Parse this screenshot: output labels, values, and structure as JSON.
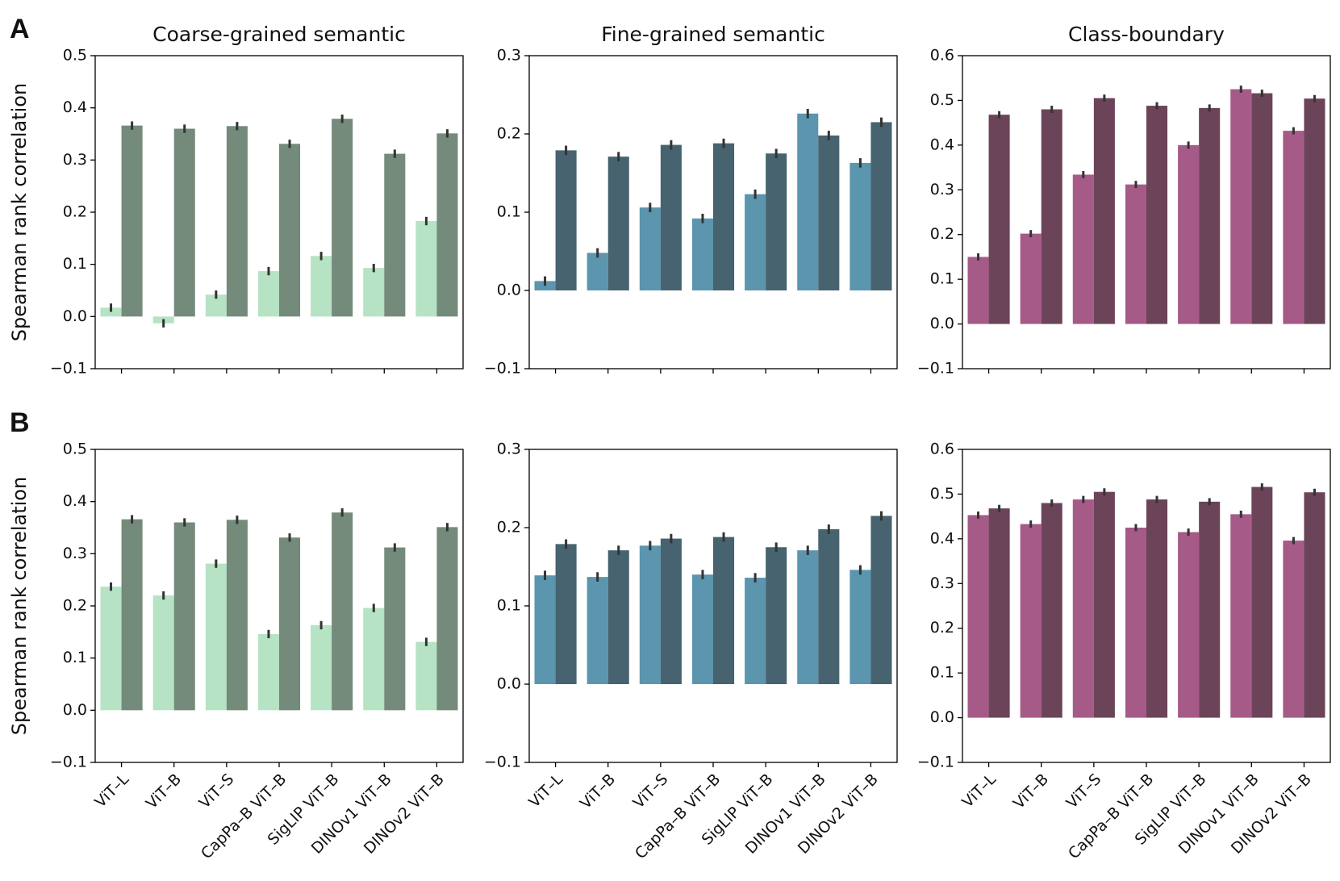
{
  "chart_data": [
    {
      "type": "bar",
      "panel_label": "A",
      "title": "Coarse-grained semantic",
      "ylabel": "Spearman  rank correlation",
      "categories": [
        null,
        null,
        null,
        null,
        null,
        null,
        null
      ],
      "series": [
        {
          "color": "#b6e3c3",
          "values": [
            0.017,
            -0.013,
            0.042,
            0.087,
            0.116,
            0.093,
            0.183
          ],
          "errors": [
            0.008,
            0.008,
            0.008,
            0.008,
            0.008,
            0.008,
            0.008
          ]
        },
        {
          "color": "#748a7b",
          "values": [
            0.366,
            0.36,
            0.365,
            0.331,
            0.379,
            0.312,
            0.351
          ],
          "errors": [
            0.008,
            0.008,
            0.008,
            0.008,
            0.008,
            0.008,
            0.008
          ]
        }
      ],
      "ylim": [
        -0.1,
        0.5
      ],
      "yticks": [
        {
          "value": -0.1,
          "label": "−0.1"
        },
        {
          "value": 0,
          "label": "0.0"
        },
        0.1,
        0.2,
        0.3,
        0.4,
        0.5
      ]
    },
    {
      "type": "bar",
      "title": "Fine-grained semantic",
      "categories": [
        null,
        null,
        null,
        null,
        null,
        null,
        null
      ],
      "series": [
        {
          "color": "#5b95ae",
          "values": [
            0.012,
            0.048,
            0.106,
            0.092,
            0.123,
            0.226,
            0.163
          ],
          "errors": [
            0.006,
            0.006,
            0.006,
            0.006,
            0.006,
            0.006,
            0.006
          ]
        },
        {
          "color": "#46636f",
          "values": [
            0.179,
            0.171,
            0.186,
            0.188,
            0.175,
            0.198,
            0.215
          ],
          "errors": [
            0.006,
            0.006,
            0.006,
            0.006,
            0.006,
            0.006,
            0.006
          ]
        }
      ],
      "ylim": [
        -0.1,
        0.3
      ],
      "yticks": [
        {
          "value": -0.1,
          "label": "−0.1"
        },
        {
          "value": 0,
          "label": "0.0"
        },
        0.1,
        0.2,
        0.3
      ]
    },
    {
      "type": "bar",
      "title": "Class-boundary",
      "categories": [
        null,
        null,
        null,
        null,
        null,
        null,
        null
      ],
      "series": [
        {
          "color": "#a65a87",
          "values": [
            0.15,
            0.202,
            0.334,
            0.312,
            0.4,
            0.525,
            0.432
          ],
          "errors": [
            0.008,
            0.008,
            0.008,
            0.008,
            0.008,
            0.008,
            0.008
          ]
        },
        {
          "color": "#6b4459",
          "values": [
            0.468,
            0.48,
            0.505,
            0.488,
            0.483,
            0.516,
            0.504
          ],
          "errors": [
            0.008,
            0.008,
            0.008,
            0.008,
            0.008,
            0.008,
            0.008
          ]
        }
      ],
      "ylim": [
        -0.1,
        0.6
      ],
      "yticks": [
        {
          "value": -0.1,
          "label": "−0.1"
        },
        {
          "value": 0,
          "label": "0.0"
        },
        0.1,
        0.2,
        0.3,
        0.4,
        0.5,
        0.6
      ]
    },
    {
      "type": "bar",
      "panel_label": "B",
      "ylabel": "Spearman  rank correlation",
      "categories": [
        "ViT–L",
        "ViT–B",
        "ViT–S",
        "CapPa–B  ViT–B",
        "SigLIP  ViT–B",
        "DINOv1  ViT–B",
        "DINOv2  ViT–B"
      ],
      "series": [
        {
          "color": "#b6e3c3",
          "values": [
            0.237,
            0.22,
            0.281,
            0.146,
            0.163,
            0.196,
            0.131
          ],
          "errors": [
            0.008,
            0.008,
            0.008,
            0.008,
            0.008,
            0.008,
            0.008
          ]
        },
        {
          "color": "#748a7b",
          "values": [
            0.366,
            0.36,
            0.365,
            0.331,
            0.379,
            0.312,
            0.351
          ],
          "errors": [
            0.008,
            0.008,
            0.008,
            0.008,
            0.008,
            0.008,
            0.008
          ]
        }
      ],
      "ylim": [
        -0.1,
        0.5
      ],
      "yticks": [
        {
          "value": -0.1,
          "label": "−0.1"
        },
        {
          "value": 0,
          "label": "0.0"
        },
        0.1,
        0.2,
        0.3,
        0.4,
        0.5
      ]
    },
    {
      "type": "bar",
      "categories": [
        "ViT–L",
        "ViT–B",
        "ViT–S",
        "CapPa–B  ViT–B",
        "SigLIP  ViT–B",
        "DINOv1  ViT–B",
        "DINOv2  ViT–B"
      ],
      "series": [
        {
          "color": "#5b95ae",
          "values": [
            0.139,
            0.137,
            0.177,
            0.14,
            0.136,
            0.171,
            0.146
          ],
          "errors": [
            0.006,
            0.006,
            0.006,
            0.006,
            0.006,
            0.006,
            0.006
          ]
        },
        {
          "color": "#46636f",
          "values": [
            0.179,
            0.171,
            0.186,
            0.188,
            0.175,
            0.198,
            0.215
          ],
          "errors": [
            0.006,
            0.006,
            0.006,
            0.006,
            0.006,
            0.006,
            0.006
          ]
        }
      ],
      "ylim": [
        -0.1,
        0.3
      ],
      "yticks": [
        {
          "value": -0.1,
          "label": "−0.1"
        },
        {
          "value": 0,
          "label": "0.0"
        },
        0.1,
        0.2,
        0.3
      ]
    },
    {
      "type": "bar",
      "categories": [
        "ViT–L",
        "ViT–B",
        "ViT–S",
        "CapPa–B  ViT–B",
        "SigLIP  ViT–B",
        "DINOv1  ViT–B",
        "DINOv2  ViT–B"
      ],
      "series": [
        {
          "color": "#a65a87",
          "values": [
            0.453,
            0.433,
            0.488,
            0.425,
            0.415,
            0.455,
            0.396
          ],
          "errors": [
            0.008,
            0.008,
            0.008,
            0.008,
            0.008,
            0.008,
            0.008
          ]
        },
        {
          "color": "#6b4459",
          "values": [
            0.468,
            0.48,
            0.505,
            0.488,
            0.483,
            0.516,
            0.504
          ],
          "errors": [
            0.008,
            0.008,
            0.008,
            0.008,
            0.008,
            0.008,
            0.008
          ]
        }
      ],
      "ylim": [
        -0.1,
        0.6
      ],
      "yticks": [
        {
          "value": -0.1,
          "label": "−0.1"
        },
        {
          "value": 0,
          "label": "0.0"
        },
        0.1,
        0.2,
        0.3,
        0.4,
        0.5,
        0.6
      ]
    }
  ]
}
